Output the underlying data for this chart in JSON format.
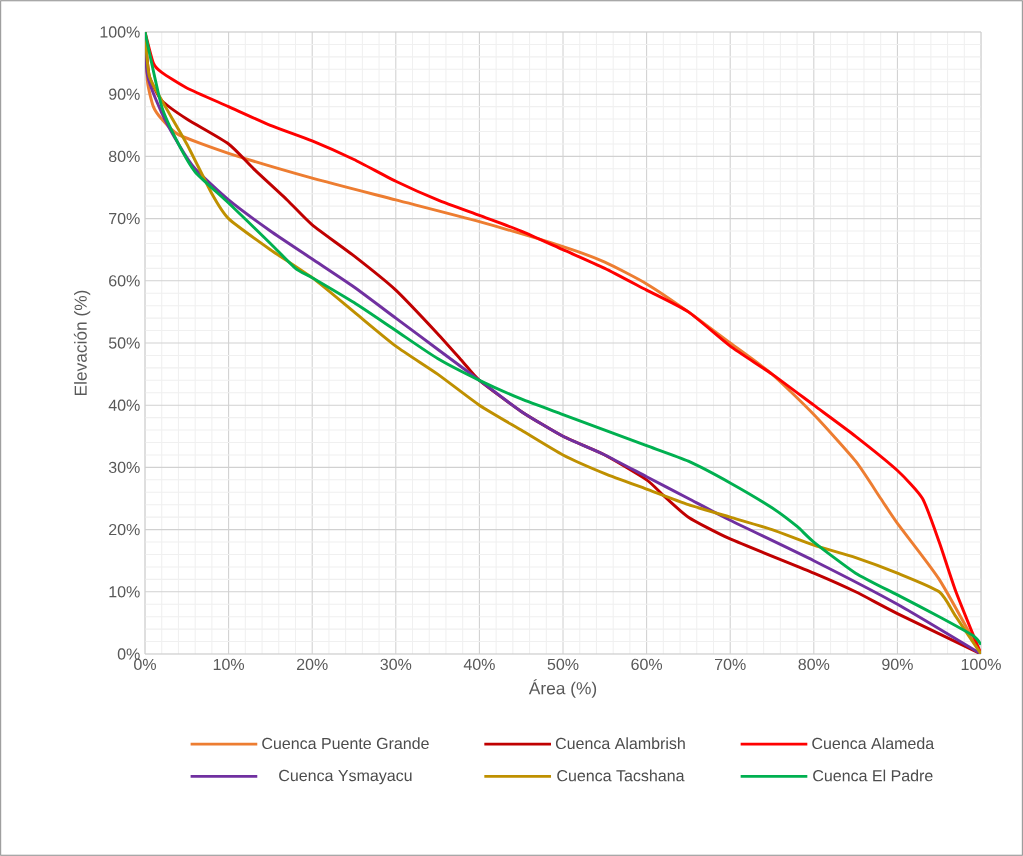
{
  "chart_data": {
    "type": "line",
    "xlabel": "Área (%)",
    "ylabel": "Elevación (%)",
    "xlim": [
      0,
      100
    ],
    "ylim": [
      0,
      100
    ],
    "xticks": [
      {
        "value": 0,
        "label": "0%"
      },
      {
        "value": 10,
        "label": "10%"
      },
      {
        "value": 20,
        "label": "20%"
      },
      {
        "value": 30,
        "label": "30%"
      },
      {
        "value": 40,
        "label": "40%"
      },
      {
        "value": 50,
        "label": "50%"
      },
      {
        "value": 60,
        "label": "60%"
      },
      {
        "value": 70,
        "label": "70%"
      },
      {
        "value": 80,
        "label": "80%"
      },
      {
        "value": 90,
        "label": "90%"
      },
      {
        "value": 100,
        "label": "100%"
      }
    ],
    "yticks": [
      {
        "value": 0,
        "label": "0%"
      },
      {
        "value": 10,
        "label": "10%"
      },
      {
        "value": 20,
        "label": "20%"
      },
      {
        "value": 30,
        "label": "30%"
      },
      {
        "value": 40,
        "label": "40%"
      },
      {
        "value": 50,
        "label": "50%"
      },
      {
        "value": 60,
        "label": "60%"
      },
      {
        "value": 70,
        "label": "70%"
      },
      {
        "value": 80,
        "label": "80%"
      },
      {
        "value": 90,
        "label": "90%"
      },
      {
        "value": 100,
        "label": "100%"
      }
    ],
    "grid": true,
    "legend": "bottom",
    "series": [
      {
        "name": "Cuenca Puente Grande",
        "color": "#ed7d31",
        "x": [
          0,
          0.3,
          1,
          2,
          4,
          10,
          20,
          30,
          40,
          50,
          55,
          60,
          65,
          70,
          75,
          80,
          85,
          88,
          90,
          95,
          100
        ],
        "values": [
          100,
          92,
          88,
          86,
          83.5,
          80.5,
          76.5,
          73,
          69.5,
          65.5,
          63,
          59.5,
          55,
          50,
          45,
          38.5,
          31,
          25,
          21,
          12,
          0
        ]
      },
      {
        "name": "Cuenca Alambrish",
        "color": "#c00000",
        "x": [
          0,
          0.5,
          2,
          5,
          10,
          13,
          17,
          20,
          25,
          30,
          35,
          38,
          40,
          45,
          50,
          55,
          60,
          62,
          65,
          70,
          80,
          85,
          90,
          100
        ],
        "values": [
          100,
          93,
          89,
          86,
          82,
          78,
          73,
          69,
          64,
          58.5,
          51.5,
          47,
          44,
          39,
          35,
          32,
          28,
          25.5,
          22,
          18.5,
          13,
          10,
          6.5,
          0
        ]
      },
      {
        "name": "Cuenca Alameda",
        "color": "#ff0000",
        "x": [
          0,
          1,
          2,
          5,
          10,
          15,
          20,
          25,
          30,
          35,
          40,
          45,
          50,
          55,
          60,
          65,
          70,
          75,
          80,
          85,
          90,
          93,
          95,
          97,
          100
        ],
        "values": [
          100,
          95,
          93.5,
          91,
          88,
          85,
          82.5,
          79.5,
          76,
          73,
          70.5,
          68,
          65,
          62,
          58.5,
          55,
          49.5,
          45,
          40,
          35,
          29.5,
          25,
          18,
          10,
          0
        ]
      },
      {
        "name": "Cuenca Ysmayacu",
        "color": "#7030a0",
        "x": [
          0,
          0.3,
          2,
          4,
          6,
          10,
          15,
          20,
          25,
          30,
          35,
          40,
          45,
          50,
          55,
          60,
          65,
          70,
          80,
          90,
          100
        ],
        "values": [
          100,
          93,
          87,
          82,
          78,
          73,
          68,
          63.5,
          59,
          54,
          49,
          44,
          39,
          35,
          32,
          28.5,
          25,
          21.5,
          15,
          8,
          0
        ]
      },
      {
        "name": "Cuenca Tacshana",
        "color": "#bf9000",
        "x": [
          0,
          0.5,
          2,
          5,
          8,
          10,
          15,
          20,
          25,
          30,
          35,
          40,
          45,
          50,
          55,
          60,
          65,
          70,
          75,
          80,
          85,
          90,
          95,
          97,
          100
        ],
        "values": [
          100,
          93,
          89,
          82,
          74,
          70,
          65,
          60.5,
          55,
          49.5,
          45,
          40,
          36,
          32,
          29,
          26.5,
          24,
          22,
          20,
          17.5,
          15.5,
          13,
          10,
          6,
          0
        ]
      },
      {
        "name": "Cuenca El Padre",
        "color": "#00b050",
        "x": [
          0,
          2,
          4,
          6,
          10,
          15,
          18,
          20,
          25,
          30,
          35,
          40,
          45,
          50,
          55,
          60,
          65,
          70,
          75,
          78,
          80,
          85,
          90,
          95,
          99,
          100
        ],
        "values": [
          100,
          88,
          82,
          77.5,
          72.5,
          66,
          62,
          60.5,
          56.5,
          52,
          47.5,
          44,
          41,
          38.5,
          36,
          33.5,
          31,
          27.5,
          23.5,
          20.5,
          18,
          13,
          9.5,
          6,
          3,
          1.5
        ]
      }
    ]
  }
}
